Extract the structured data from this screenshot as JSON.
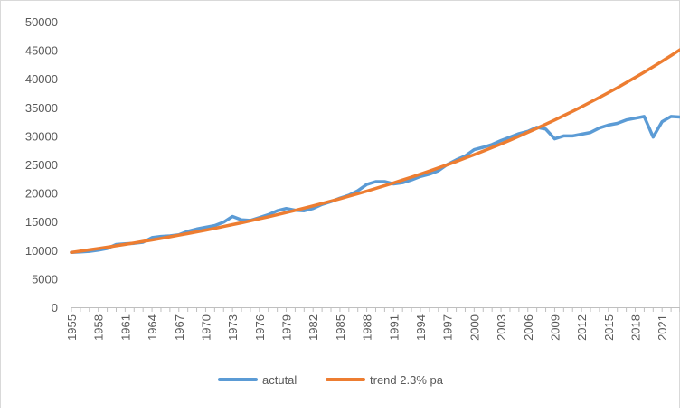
{
  "chart_data": {
    "type": "line",
    "title": "",
    "xlabel": "",
    "ylabel": "",
    "ylim": [
      0,
      50000
    ],
    "yticks": [
      0,
      5000,
      10000,
      15000,
      20000,
      25000,
      30000,
      35000,
      40000,
      45000,
      50000
    ],
    "xlim": [
      1955,
      2023
    ],
    "xtick_labels": [
      "1955",
      "1958",
      "1961",
      "1964",
      "1967",
      "1970",
      "1973",
      "1976",
      "1979",
      "1982",
      "1985",
      "1988",
      "1991",
      "1994",
      "1997",
      "2000",
      "2003",
      "2006",
      "2009",
      "2012",
      "2015",
      "2018",
      "2021"
    ],
    "grid": false,
    "legend": "bottom",
    "x": [
      1955,
      1956,
      1957,
      1958,
      1959,
      1960,
      1961,
      1962,
      1963,
      1964,
      1965,
      1966,
      1967,
      1968,
      1969,
      1970,
      1971,
      1972,
      1973,
      1974,
      1975,
      1976,
      1977,
      1978,
      1979,
      1980,
      1981,
      1982,
      1983,
      1984,
      1985,
      1986,
      1987,
      1988,
      1989,
      1990,
      1991,
      1992,
      1993,
      1994,
      1995,
      1996,
      1997,
      1998,
      1999,
      2000,
      2001,
      2002,
      2003,
      2004,
      2005,
      2006,
      2007,
      2008,
      2009,
      2010,
      2011,
      2012,
      2013,
      2014,
      2015,
      2016,
      2017,
      2018,
      2019,
      2020,
      2021,
      2022,
      2023
    ],
    "series": [
      {
        "name": "actutal",
        "color": "#5B9BD5",
        "values": [
          9600,
          9700,
          9800,
          10000,
          10300,
          11000,
          11100,
          11200,
          11400,
          12200,
          12400,
          12500,
          12700,
          13300,
          13700,
          14000,
          14300,
          14900,
          15900,
          15300,
          15200,
          15700,
          16200,
          16900,
          17300,
          17000,
          16900,
          17300,
          18000,
          18500,
          19100,
          19600,
          20400,
          21500,
          22000,
          22000,
          21600,
          21800,
          22300,
          22900,
          23300,
          23900,
          25000,
          25800,
          26500,
          27600,
          28000,
          28500,
          29200,
          29800,
          30400,
          30800,
          31500,
          31200,
          29500,
          30000,
          30000,
          30300,
          30600,
          31400,
          31900,
          32200,
          32800,
          33100,
          33400,
          29800,
          32500,
          33400,
          33300
        ]
      },
      {
        "name": "trend 2.3% pa",
        "color": "#ED7D31",
        "values": [
          9610,
          9830,
          10060,
          10290,
          10530,
          10770,
          11020,
          11270,
          11530,
          11790,
          12060,
          12340,
          12620,
          12910,
          13210,
          13510,
          13820,
          14140,
          14470,
          14800,
          15140,
          15490,
          15840,
          16210,
          16580,
          16960,
          17350,
          17750,
          18160,
          18580,
          19000,
          19440,
          19890,
          20340,
          20810,
          21290,
          21780,
          22280,
          22790,
          23310,
          23850,
          24400,
          24960,
          25530,
          26120,
          26720,
          27330,
          27960,
          28610,
          29260,
          29940,
          30630,
          31330,
          32050,
          32790,
          33540,
          34310,
          35100,
          35910,
          36740,
          37580,
          38440,
          39330,
          40230,
          41160,
          42100,
          43070,
          44060,
          45080
        ]
      }
    ]
  }
}
